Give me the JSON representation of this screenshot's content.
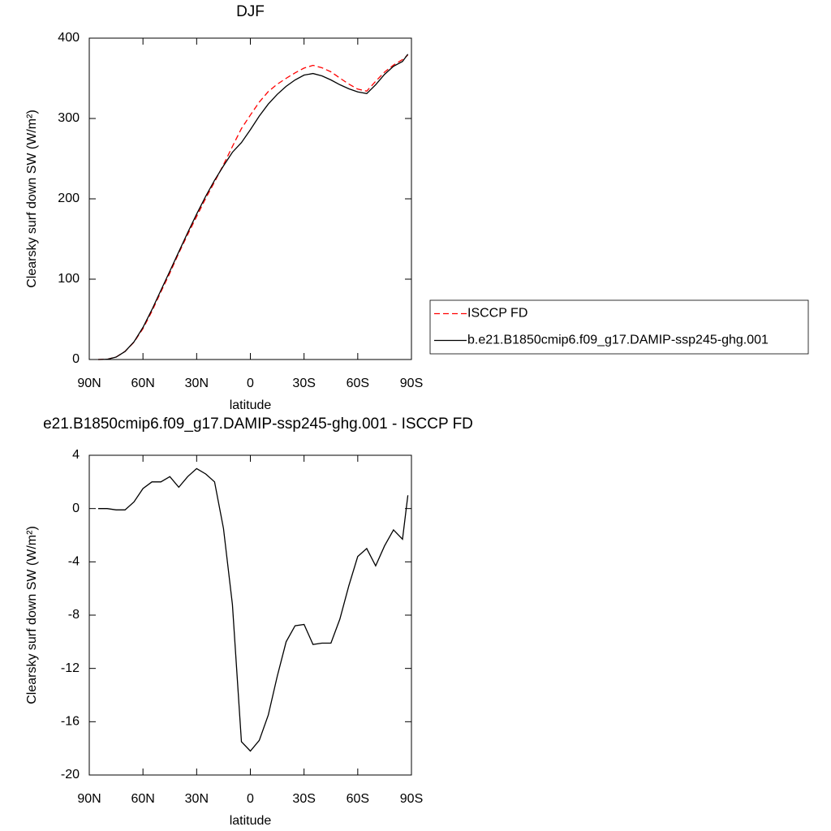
{
  "chart_data": [
    {
      "type": "line",
      "title": "DJF",
      "xlabel": "latitude",
      "ylabel": "Clearsky surf down SW (W/m²)",
      "x": [
        85,
        80,
        75,
        70,
        65,
        60,
        55,
        50,
        45,
        40,
        35,
        30,
        25,
        20,
        15,
        10,
        5,
        0,
        -5,
        -10,
        -15,
        -20,
        -25,
        -30,
        -35,
        -40,
        -45,
        -50,
        -55,
        -60,
        -65,
        -70,
        -75,
        -80,
        -85,
        -88
      ],
      "xlim": [
        90,
        -90
      ],
      "xticks": [
        {
          "value": 90,
          "label": "90N"
        },
        {
          "value": 60,
          "label": "60N"
        },
        {
          "value": 30,
          "label": "30N"
        },
        0,
        {
          "value": -30,
          "label": "30S"
        },
        {
          "value": -60,
          "label": "60S"
        },
        {
          "value": -90,
          "label": "90S"
        }
      ],
      "ylim": [
        0,
        400
      ],
      "yticks": [
        0,
        100,
        200,
        300,
        400
      ],
      "legend": "right",
      "series": [
        {
          "name": "ISCCP FD",
          "color": "#ff0000",
          "dash": true,
          "values": [
            0,
            0.3,
            3.1,
            10.1,
            21.5,
            38.5,
            60,
            84,
            107.6,
            132.4,
            155.6,
            178,
            200.4,
            221,
            242.5,
            265.2,
            287.5,
            304.2,
            320.4,
            333.5,
            342.6,
            350,
            356.8,
            362.7,
            366.2,
            363.1,
            358.1,
            350.3,
            342.8,
            336.6,
            334,
            346.3,
            357.8,
            366.6,
            373.3,
            379
          ]
        },
        {
          "name": "b.e21.B1850cmip6.f09_g17.DAMIP-ssp245-ghg.001",
          "color": "#000000",
          "dash": false,
          "values": [
            0,
            0.3,
            3,
            10,
            22,
            40,
            62,
            86,
            110,
            134,
            158,
            181,
            203,
            223,
            241,
            258,
            270,
            286,
            303,
            318,
            330,
            340,
            348,
            354,
            356,
            353,
            348,
            342,
            337,
            333,
            331,
            342,
            355,
            365,
            371,
            380
          ]
        }
      ]
    },
    {
      "type": "line",
      "title": "e21.B1850cmip6.f09_g17.DAMIP-ssp245-ghg.001 - ISCCP FD",
      "xlabel": "latitude",
      "ylabel": "Clearsky surf down SW (W/m²)",
      "x": [
        85,
        80,
        75,
        70,
        65,
        60,
        55,
        50,
        45,
        40,
        35,
        30,
        25,
        20,
        15,
        10,
        5,
        0,
        -5,
        -10,
        -15,
        -20,
        -25,
        -30,
        -35,
        -40,
        -45,
        -50,
        -55,
        -60,
        -65,
        -70,
        -75,
        -80,
        -85,
        -88
      ],
      "xlim": [
        90,
        -90
      ],
      "xticks": [
        {
          "value": 90,
          "label": "90N"
        },
        {
          "value": 60,
          "label": "60N"
        },
        {
          "value": 30,
          "label": "30N"
        },
        0,
        {
          "value": -30,
          "label": "30S"
        },
        {
          "value": -60,
          "label": "60S"
        },
        {
          "value": -90,
          "label": "90S"
        }
      ],
      "ylim": [
        -20,
        4
      ],
      "yticks": [
        -20,
        -16,
        -12,
        -8,
        -4,
        0,
        4
      ],
      "series": [
        {
          "color": "#000000",
          "dash": false,
          "values": [
            0,
            0,
            -0.1,
            -0.1,
            0.5,
            1.5,
            2.0,
            2.0,
            2.4,
            1.6,
            2.4,
            3.0,
            2.6,
            2.0,
            -1.5,
            -7.2,
            -17.5,
            -18.2,
            -17.4,
            -15.5,
            -12.6,
            -10.0,
            -8.8,
            -8.7,
            -10.2,
            -10.1,
            -10.1,
            -8.3,
            -5.8,
            -3.6,
            -3.0,
            -4.3,
            -2.8,
            -1.6,
            -2.3,
            1.0
          ]
        }
      ]
    }
  ]
}
